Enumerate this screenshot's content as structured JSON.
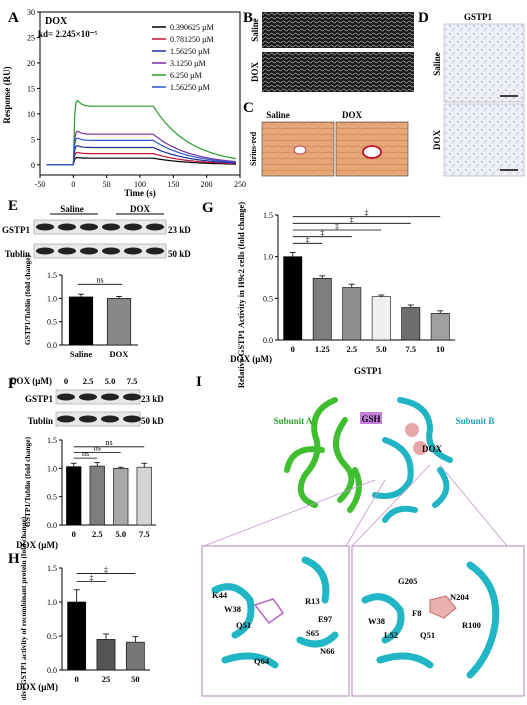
{
  "panels": {
    "A": {
      "label": "A",
      "compound": "DOX",
      "kd": "kd= 2.245×10⁻⁵",
      "ylabel": "Response (RU)",
      "xlabel": "Time (s)",
      "xticks": [
        "-50",
        "0",
        "50",
        "100",
        "150",
        "200",
        "250"
      ],
      "yticks": [
        "0",
        "5",
        "10",
        "15",
        "20",
        "25",
        "30"
      ],
      "legend": [
        {
          "label": "0.390625 µM",
          "color": "#000000"
        },
        {
          "label": "0.781250 µM",
          "color": "#c0133a"
        },
        {
          "label": "1.56250 µM",
          "color": "#1d2d9c"
        },
        {
          "label": "3.1250 µM",
          "color": "#7a2fa0"
        },
        {
          "label": "6.250 µM",
          "color": "#2a9d2a"
        },
        {
          "label": "1.56250 µM",
          "color": "#2d57c9"
        }
      ]
    },
    "B": {
      "label": "B",
      "rows": [
        "Saline",
        "DOX"
      ]
    },
    "C": {
      "label": "C",
      "side": "Sirius-red",
      "cols": [
        "Saline",
        "DOX"
      ]
    },
    "D": {
      "label": "D",
      "title": "GSTP1",
      "rows": [
        "Saline",
        "DOX"
      ]
    },
    "E": {
      "label": "E",
      "groups": [
        "Saline",
        "DOX"
      ],
      "blots": [
        {
          "name": "GSTP1",
          "size": "23 kD"
        },
        {
          "name": "Tublin",
          "size": "50 kD"
        }
      ],
      "ylabel": "GSTP1/Tublin (fold change)",
      "sig": "ns",
      "yticks": [
        "0.0",
        "0.5",
        "1.0",
        "1.5"
      ]
    },
    "F": {
      "label": "F",
      "dox_label": "DOX (µM)",
      "doses": [
        "0",
        "2.5",
        "5.0",
        "7.5"
      ],
      "blots": [
        {
          "name": "GSTP1",
          "size": "23 kD"
        },
        {
          "name": "Tublin",
          "size": "50 kD"
        }
      ],
      "ylabel": "GSTP1/Tublin (fold change)",
      "sig": [
        "ns",
        "ns",
        "ns"
      ],
      "yticks": [
        "0.0",
        "0.5",
        "1.0",
        "1.5"
      ]
    },
    "G": {
      "label": "G",
      "ylabel": "Relative GSTP1 Activity in H9c2 cells (fold change)",
      "dox_label": "DOX (µM)",
      "sig": [
        "‡",
        "‡",
        "‡",
        "‡",
        "‡"
      ],
      "yticks": [
        "0.0",
        "0.5",
        "1.0",
        "1.5"
      ]
    },
    "H": {
      "label": "H",
      "ylabel": "Relative GSTP1 activity of recombinant protein (fold change)",
      "dox_label": "DOX (µM)",
      "sig": [
        "‡",
        "‡"
      ],
      "yticks": [
        "0.0",
        "0.5",
        "1.0",
        "1.5"
      ]
    },
    "I": {
      "label": "I",
      "title": "GSTP1",
      "subunit_a": "Subunit A",
      "subunit_b": "Subunit B",
      "gsh": "GSH",
      "dox": "DOX",
      "left_residues": [
        "K44",
        "W38",
        "R13",
        "E97",
        "Q51",
        "S65",
        "N66",
        "Q64"
      ],
      "right_residues": [
        "G205",
        "N204",
        "W38",
        "F8",
        "R100",
        "L52",
        "Q51"
      ]
    }
  },
  "chart_data": [
    {
      "type": "bar",
      "panel": "E",
      "categories": [
        "Saline",
        "DOX"
      ],
      "values": [
        1.03,
        1.0
      ],
      "errors": [
        0.06,
        0.04
      ],
      "ylim": [
        0,
        1.5
      ],
      "colors": [
        "#000000",
        "#888888"
      ]
    },
    {
      "type": "bar",
      "panel": "F",
      "categories": [
        "0",
        "2.5",
        "5.0",
        "7.5"
      ],
      "values": [
        1.03,
        1.04,
        1.0,
        1.02
      ],
      "errors": [
        0.06,
        0.06,
        0.02,
        0.07
      ],
      "ylim": [
        0,
        1.5
      ],
      "colors": [
        "#000000",
        "#7d7d7d",
        "#a8a8a8",
        "#d4d4d4"
      ]
    },
    {
      "type": "bar",
      "panel": "G",
      "categories": [
        "0",
        "1.25",
        "2.5",
        "5.0",
        "7.5",
        "10"
      ],
      "values": [
        1.0,
        0.74,
        0.63,
        0.52,
        0.39,
        0.32
      ],
      "errors": [
        0.05,
        0.03,
        0.04,
        0.02,
        0.03,
        0.03
      ],
      "ylim": [
        0,
        1.5
      ],
      "colors": [
        "#000000",
        "#7d7d7d",
        "#8f8f8f",
        "#f0f0f0",
        "#6e6e6e",
        "#a0a0a0"
      ]
    },
    {
      "type": "bar",
      "panel": "H",
      "categories": [
        "0",
        "25",
        "50"
      ],
      "values": [
        1.0,
        0.45,
        0.41
      ],
      "errors": [
        0.18,
        0.08,
        0.08
      ],
      "ylim": [
        0,
        1.5
      ],
      "colors": [
        "#000000",
        "#555555",
        "#777777"
      ]
    },
    {
      "type": "line",
      "panel": "A",
      "xlim": [
        -50,
        250
      ],
      "ylim": [
        -2,
        30
      ],
      "series": [
        {
          "color": "#000000",
          "plateau": 1.3
        },
        {
          "color": "#c0133a",
          "plateau": 2.2
        },
        {
          "color": "#1d2d9c",
          "plateau": 3.4
        },
        {
          "color": "#7a2fa0",
          "plateau": 6.0
        },
        {
          "color": "#2a9d2a",
          "plateau": 11.5
        },
        {
          "color": "#2d57c9",
          "plateau": 4.8
        }
      ]
    }
  ]
}
